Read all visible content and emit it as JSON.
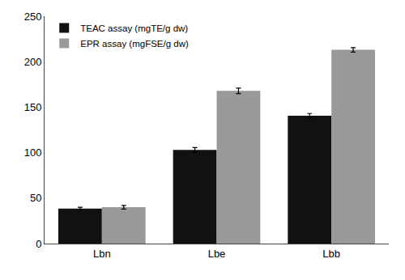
{
  "chart_data": {
    "type": "bar",
    "categories": [
      "Lbn",
      "Lbe",
      "Lbb"
    ],
    "series": [
      {
        "name": "TEAC assay (mgTE/g dw)",
        "color": "#111111",
        "values": [
          38.5,
          103.0,
          140.5
        ],
        "errors": [
          1.5,
          2.5,
          2.5
        ]
      },
      {
        "name": "EPR assay (mgFSE/g dw)",
        "color": "#999999",
        "values": [
          40.0,
          168.0,
          213.0
        ],
        "errors": [
          2.0,
          3.0,
          2.5
        ]
      }
    ],
    "ylim": [
      0,
      250
    ],
    "yticks": [
      0,
      50,
      100,
      150,
      200,
      250
    ],
    "grid": false,
    "legend": "upper left"
  }
}
